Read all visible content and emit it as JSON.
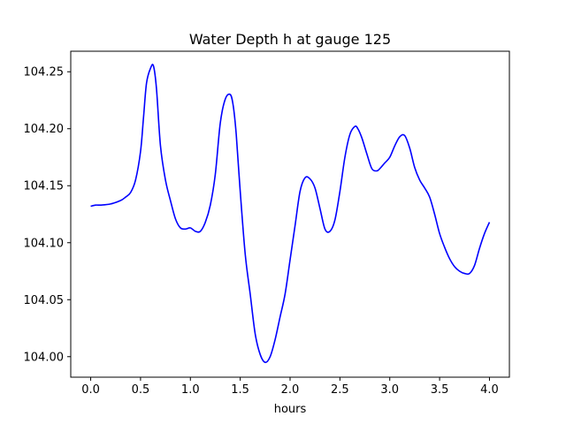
{
  "chart_data": {
    "type": "line",
    "title": "Water Depth h at gauge 125",
    "xlabel": "hours",
    "ylabel": "",
    "xlim": [
      -0.2,
      4.2
    ],
    "ylim": [
      103.982,
      104.268
    ],
    "xticks": [
      0.0,
      0.5,
      1.0,
      1.5,
      2.0,
      2.5,
      3.0,
      3.5,
      4.0
    ],
    "xtick_labels": [
      "0.0",
      "0.5",
      "1.0",
      "1.5",
      "2.0",
      "2.5",
      "3.0",
      "3.5",
      "4.0"
    ],
    "yticks": [
      104.0,
      104.05,
      104.1,
      104.15,
      104.2,
      104.25
    ],
    "ytick_labels": [
      "104.00",
      "104.05",
      "104.10",
      "104.15",
      "104.20",
      "104.25"
    ],
    "grid": false,
    "series": [
      {
        "color": "#0000ff",
        "x": [
          0.0,
          0.05,
          0.1,
          0.2,
          0.3,
          0.35,
          0.4,
          0.45,
          0.5,
          0.53,
          0.56,
          0.6,
          0.63,
          0.66,
          0.7,
          0.75,
          0.8,
          0.85,
          0.9,
          0.95,
          1.0,
          1.05,
          1.1,
          1.15,
          1.2,
          1.25,
          1.3,
          1.35,
          1.4,
          1.43,
          1.46,
          1.5,
          1.55,
          1.6,
          1.65,
          1.7,
          1.75,
          1.8,
          1.85,
          1.9,
          1.95,
          2.0,
          2.05,
          2.1,
          2.15,
          2.2,
          2.25,
          2.3,
          2.35,
          2.4,
          2.45,
          2.5,
          2.55,
          2.6,
          2.65,
          2.68,
          2.72,
          2.77,
          2.82,
          2.87,
          2.9,
          2.95,
          3.0,
          3.05,
          3.1,
          3.15,
          3.2,
          3.25,
          3.3,
          3.35,
          3.4,
          3.45,
          3.5,
          3.55,
          3.6,
          3.65,
          3.7,
          3.75,
          3.8,
          3.85,
          3.9,
          3.95,
          4.0
        ],
        "y": [
          104.132,
          104.133,
          104.133,
          104.134,
          104.137,
          104.14,
          104.144,
          104.155,
          104.18,
          104.21,
          104.24,
          104.253,
          104.255,
          104.235,
          104.185,
          104.155,
          104.137,
          104.121,
          104.113,
          104.112,
          104.113,
          104.11,
          104.11,
          104.118,
          104.133,
          104.16,
          104.205,
          104.226,
          104.23,
          104.22,
          104.195,
          104.145,
          104.09,
          104.055,
          104.02,
          104.002,
          103.995,
          104.0,
          104.015,
          104.035,
          104.055,
          104.085,
          104.115,
          104.145,
          104.157,
          104.156,
          104.148,
          104.13,
          104.112,
          104.11,
          104.12,
          104.145,
          104.175,
          104.195,
          104.202,
          104.2,
          104.192,
          104.178,
          104.165,
          104.163,
          104.165,
          104.17,
          104.175,
          104.185,
          104.193,
          104.194,
          104.183,
          104.166,
          104.155,
          104.148,
          104.14,
          104.125,
          104.108,
          104.096,
          104.086,
          104.079,
          104.075,
          104.073,
          104.073,
          104.08,
          104.095,
          104.108,
          104.118
        ]
      }
    ]
  }
}
